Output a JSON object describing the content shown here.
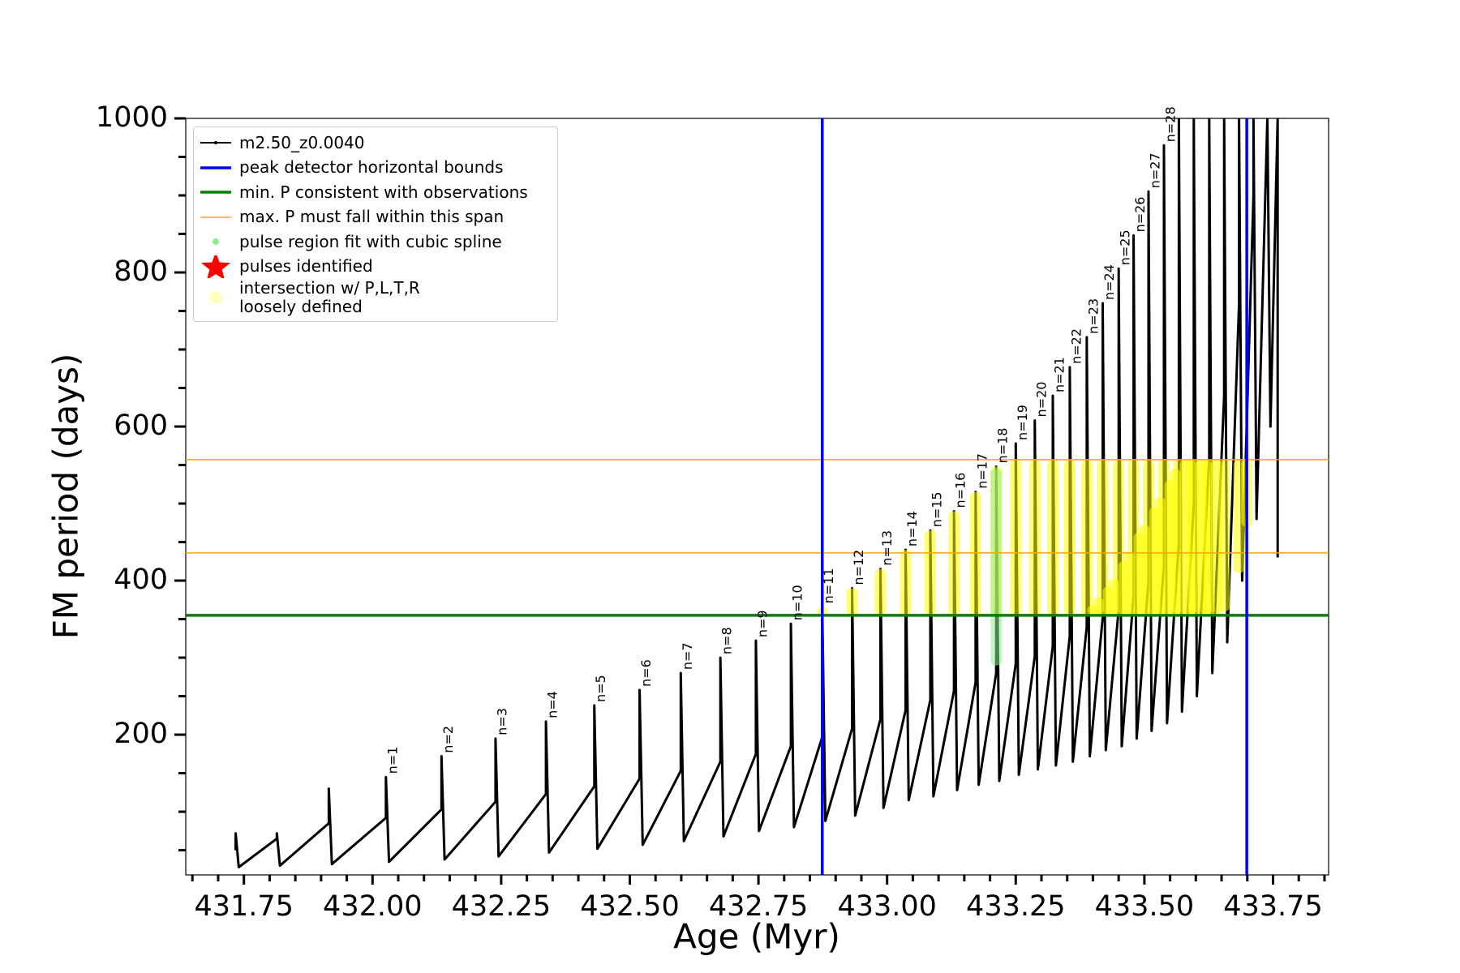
{
  "chart_data": {
    "type": "line",
    "x_label": "Age (Myr)",
    "y_label": "FM period (days)",
    "xlim": [
      431.637,
      433.858
    ],
    "ylim": [
      18,
      1000
    ],
    "xticks": [
      431.75,
      {
        "value": 432,
        "label": "432.00"
      },
      432.25,
      {
        "value": 432.5,
        "label": "432.50"
      },
      432.75,
      {
        "value": 433,
        "label": "433.00"
      },
      433.25,
      {
        "value": 433.5,
        "label": "433.50"
      },
      433.75
    ],
    "xminorticks": [
      431.65,
      431.7,
      431.8,
      431.85,
      431.9,
      431.95,
      432.05,
      432.1,
      432.15,
      432.2,
      432.3,
      432.35,
      432.4,
      432.45,
      432.55,
      432.6,
      432.65,
      432.7,
      432.8,
      432.85,
      432.9,
      432.95,
      433.05,
      433.1,
      433.15,
      433.2,
      433.3,
      433.35,
      433.4,
      433.45,
      433.55,
      433.6,
      433.65,
      433.7,
      433.8,
      433.85
    ],
    "yticks": [
      200,
      400,
      600,
      800,
      1000
    ],
    "yminorticks": [
      50,
      100,
      150,
      250,
      300,
      350,
      450,
      500,
      550,
      650,
      700,
      750,
      850,
      900,
      950
    ],
    "series": [
      {
        "name": "m2.50_z0.0040",
        "type": "line",
        "color": "#000000",
        "marker": "line-dot",
        "x": [
          431.734,
          431.734,
          431.74,
          431.814,
          431.814,
          431.82,
          431.915,
          431.915,
          431.921,
          432.026,
          432.026,
          432.032,
          432.134,
          432.134,
          432.14,
          432.239,
          432.239,
          432.245,
          432.337,
          432.337,
          432.343,
          432.431,
          432.431,
          432.437,
          432.519,
          432.519,
          432.525,
          432.599,
          432.599,
          432.605,
          432.676,
          432.676,
          432.682,
          432.745,
          432.745,
          432.751,
          432.813,
          432.813,
          432.819,
          432.874,
          432.874,
          432.88,
          432.932,
          432.932,
          432.938,
          432.987,
          432.987,
          432.993,
          433.036,
          433.036,
          433.042,
          433.084,
          433.084,
          433.09,
          433.13,
          433.13,
          433.136,
          433.172,
          433.172,
          433.178,
          433.212,
          433.212,
          433.218,
          433.25,
          433.25,
          433.256,
          433.287,
          433.287,
          433.293,
          433.322,
          433.322,
          433.328,
          433.355,
          433.355,
          433.361,
          433.388,
          433.388,
          433.394,
          433.419,
          433.419,
          433.425,
          433.45,
          433.45,
          433.456,
          433.479,
          433.479,
          433.485,
          433.508,
          433.508,
          433.514,
          433.538,
          433.538,
          433.544,
          433.567,
          433.567,
          433.573,
          433.596,
          433.596,
          433.602,
          433.626,
          433.626,
          433.632,
          433.655,
          433.655,
          433.661,
          433.684,
          433.684,
          433.69,
          433.712,
          433.712,
          433.718,
          433.739,
          433.739,
          433.745,
          433.759,
          433.759
        ],
        "values": [
          50,
          72,
          28,
          65,
          72,
          30,
          85,
          130,
          32,
          92,
          145,
          35,
          103,
          172,
          38,
          113,
          195,
          42,
          123,
          217,
          47,
          133,
          238,
          52,
          143,
          258,
          57,
          153,
          280,
          62,
          165,
          300,
          68,
          175,
          322,
          75,
          185,
          344,
          80,
          197,
          366,
          88,
          208,
          390,
          95,
          220,
          415,
          105,
          232,
          440,
          115,
          245,
          465,
          120,
          257,
          490,
          128,
          268,
          515,
          135,
          280,
          548,
          140,
          292,
          578,
          148,
          302,
          608,
          155,
          315,
          640,
          160,
          328,
          677,
          165,
          340,
          716,
          172,
          352,
          760,
          180,
          362,
          805,
          185,
          380,
          848,
          195,
          400,
          905,
          205,
          420,
          965,
          215,
          450,
          1000,
          230,
          500,
          1000,
          250,
          560,
          1000,
          280,
          640,
          1000,
          320,
          760,
          1000,
          400,
          900,
          1000,
          480,
          1000,
          1000,
          600,
          1000,
          430
        ]
      },
      {
        "name": "peak detector horizontal bounds",
        "type": "vline",
        "color": "#0000ff",
        "marker": "line",
        "width": 3.5,
        "values": [
          432.874,
          433.699
        ]
      },
      {
        "name": "min. P consistent with observations",
        "type": "hline",
        "color": "#008000",
        "marker": "line",
        "width": 3.5,
        "values": [
          355
        ]
      },
      {
        "name": "max. P must fall within this span",
        "type": "hline",
        "color": "#ffa500",
        "marker": "line",
        "width": 1.5,
        "values": [
          557,
          436
        ]
      },
      {
        "name": "pulse region fit with cubic spline",
        "type": "range",
        "color": "#90ee90",
        "marker": "dot",
        "x": [
          433.212
        ],
        "low": [
          290
        ],
        "high": [
          545
        ]
      },
      {
        "name": "pulses identified",
        "type": "scatter",
        "color": "#ff0000",
        "marker": "star",
        "x": [],
        "values": []
      },
      {
        "name": "intersection w/ P,L,T,R\nloosely defined",
        "type": "range",
        "color": "#ffff00",
        "marker": "circle",
        "x": [
          432.874,
          432.932,
          432.987,
          433.036,
          433.084,
          433.13,
          433.172,
          433.212,
          433.25,
          433.287,
          433.322,
          433.355,
          433.388,
          433.419,
          433.45,
          433.479,
          433.508,
          433.538,
          433.567,
          433.596,
          433.626,
          433.655,
          433.684,
          433.699,
          433.4,
          433.41,
          433.43,
          433.44,
          433.46,
          433.47,
          433.49,
          433.5,
          433.52,
          433.53,
          433.55,
          433.56,
          433.58,
          433.59,
          433.61,
          433.62,
          433.64
        ],
        "low": [
          355,
          355,
          355,
          355,
          355,
          355,
          355,
          355,
          355,
          355,
          355,
          355,
          355,
          355,
          355,
          355,
          355,
          355,
          355,
          355,
          355,
          360,
          410,
          470,
          355,
          355,
          355,
          355,
          355,
          355,
          355,
          355,
          355,
          355,
          355,
          355,
          355,
          355,
          355,
          355,
          355
        ],
        "high": [
          366,
          390,
          415,
          440,
          465,
          490,
          515,
          548,
          557,
          557,
          557,
          557,
          557,
          557,
          557,
          557,
          557,
          557,
          557,
          557,
          557,
          557,
          557,
          557,
          368,
          378,
          392,
          402,
          425,
          438,
          462,
          472,
          495,
          508,
          530,
          545,
          557,
          557,
          557,
          557,
          557
        ]
      }
    ],
    "annotations": [
      {
        "text": "n=1",
        "x": 432.026,
        "y": 145
      },
      {
        "text": "n=2",
        "x": 432.134,
        "y": 172
      },
      {
        "text": "n=3",
        "x": 432.239,
        "y": 195
      },
      {
        "text": "n=4",
        "x": 432.337,
        "y": 217
      },
      {
        "text": "n=5",
        "x": 432.431,
        "y": 238
      },
      {
        "text": "n=6",
        "x": 432.519,
        "y": 258
      },
      {
        "text": "n=7",
        "x": 432.599,
        "y": 280
      },
      {
        "text": "n=8",
        "x": 432.676,
        "y": 300
      },
      {
        "text": "n=9",
        "x": 432.745,
        "y": 322
      },
      {
        "text": "n=10",
        "x": 432.813,
        "y": 344
      },
      {
        "text": "n=11",
        "x": 432.874,
        "y": 366
      },
      {
        "text": "n=12",
        "x": 432.932,
        "y": 390
      },
      {
        "text": "n=13",
        "x": 432.987,
        "y": 415
      },
      {
        "text": "n=14",
        "x": 433.036,
        "y": 440
      },
      {
        "text": "n=15",
        "x": 433.084,
        "y": 465
      },
      {
        "text": "n=16",
        "x": 433.13,
        "y": 490
      },
      {
        "text": "n=17",
        "x": 433.172,
        "y": 515
      },
      {
        "text": "n=18",
        "x": 433.212,
        "y": 548
      },
      {
        "text": "n=19",
        "x": 433.25,
        "y": 578
      },
      {
        "text": "n=20",
        "x": 433.287,
        "y": 608
      },
      {
        "text": "n=21",
        "x": 433.322,
        "y": 640
      },
      {
        "text": "n=22",
        "x": 433.355,
        "y": 677
      },
      {
        "text": "n=23",
        "x": 433.388,
        "y": 716
      },
      {
        "text": "n=24",
        "x": 433.419,
        "y": 760
      },
      {
        "text": "n=25",
        "x": 433.45,
        "y": 805
      },
      {
        "text": "n=26",
        "x": 433.479,
        "y": 848
      },
      {
        "text": "n=27",
        "x": 433.508,
        "y": 905
      },
      {
        "text": "n=28",
        "x": 433.538,
        "y": 965
      }
    ]
  }
}
